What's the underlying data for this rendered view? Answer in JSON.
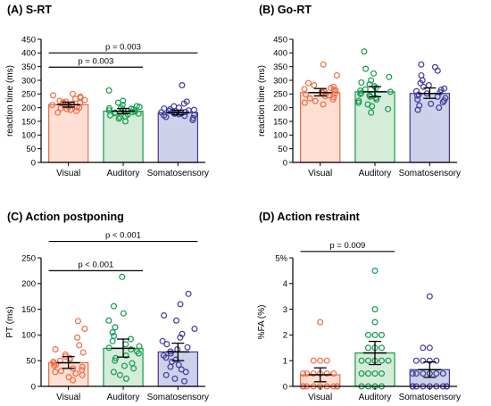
{
  "colors": {
    "Visual": {
      "fill": "#fde0d3",
      "stroke": "#ef6a45"
    },
    "Auditory": {
      "fill": "#d5ecd8",
      "stroke": "#129a4b"
    },
    "Somatosensory": {
      "fill": "#cdd1ea",
      "stroke": "#41399b"
    },
    "axis": "#000000"
  },
  "chart_data": [
    {
      "panel": "(A) S-RT",
      "type": "bar",
      "title": "(A) S-RT",
      "ylabel": "reaction time (ms)",
      "categories": [
        "Visual",
        "Auditory",
        "Somatosensory"
      ],
      "ylim": [
        0,
        450
      ],
      "yticks": [
        0,
        50,
        100,
        150,
        200,
        250,
        300,
        350,
        400,
        450
      ],
      "means": [
        211,
        187,
        182
      ],
      "ci": [
        [
          202,
          220
        ],
        [
          178,
          197
        ],
        [
          174,
          191
        ]
      ],
      "points": [
        [
          182,
          188,
          192,
          195,
          198,
          200,
          202,
          204,
          206,
          208,
          210,
          211,
          213,
          215,
          217,
          219,
          222,
          225,
          228,
          232,
          236,
          240,
          245,
          250
        ],
        [
          150,
          160,
          165,
          168,
          172,
          175,
          178,
          180,
          182,
          184,
          186,
          188,
          190,
          192,
          194,
          196,
          198,
          200,
          203,
          206,
          210,
          218,
          225,
          263
        ],
        [
          155,
          162,
          166,
          170,
          172,
          174,
          176,
          178,
          180,
          181,
          182,
          183,
          184,
          186,
          188,
          190,
          192,
          194,
          197,
          200,
          205,
          215,
          222,
          282
        ]
      ],
      "comparisons": [
        {
          "label": "p = 0.003",
          "from": 0,
          "to": 1,
          "y": 348
        },
        {
          "label": "p = 0.003",
          "from": 0,
          "to": 2,
          "y": 400
        }
      ]
    },
    {
      "panel": "(B) Go-RT",
      "type": "bar",
      "title": "(B) Go-RT",
      "ylabel": "reaction time (ms)",
      "categories": [
        "Visual",
        "Auditory",
        "Somatosensory"
      ],
      "ylim": [
        0,
        450
      ],
      "yticks": [
        0,
        50,
        100,
        150,
        200,
        250,
        300,
        350,
        400,
        450
      ],
      "means": [
        255,
        258,
        252
      ],
      "ci": [
        [
          243,
          270
        ],
        [
          240,
          277
        ],
        [
          234,
          272
        ]
      ],
      "points": [
        [
          212,
          218,
          224,
          230,
          234,
          238,
          242,
          245,
          248,
          250,
          252,
          254,
          256,
          258,
          260,
          262,
          265,
          268,
          272,
          276,
          282,
          290,
          318,
          358
        ],
        [
          182,
          195,
          205,
          212,
          218,
          225,
          230,
          236,
          240,
          245,
          250,
          254,
          258,
          262,
          267,
          272,
          278,
          285,
          292,
          300,
          312,
          325,
          342,
          405
        ],
        [
          192,
          200,
          208,
          214,
          220,
          226,
          230,
          235,
          240,
          244,
          248,
          252,
          256,
          260,
          265,
          270,
          276,
          282,
          290,
          300,
          318,
          335,
          348,
          358
        ]
      ],
      "comparisons": []
    },
    {
      "panel": "(C) Action postponing",
      "type": "bar",
      "title": "(C) Action postponing",
      "ylabel": "PT (ms)",
      "categories": [
        "Visual",
        "Auditory",
        "Somatosensory"
      ],
      "ylim": [
        0,
        250
      ],
      "yticks": [
        0,
        50,
        100,
        150,
        200,
        250
      ],
      "means": [
        46,
        74,
        67
      ],
      "ci": [
        [
          35,
          58
        ],
        [
          57,
          92
        ],
        [
          50,
          84
        ]
      ],
      "points": [
        [
          12,
          18,
          22,
          25,
          28,
          30,
          32,
          35,
          38,
          40,
          42,
          45,
          48,
          50,
          52,
          55,
          58,
          62,
          66,
          72,
          80,
          95,
          112,
          127
        ],
        [
          15,
          22,
          28,
          35,
          40,
          45,
          50,
          55,
          60,
          64,
          68,
          72,
          75,
          78,
          82,
          88,
          92,
          98,
          105,
          115,
          128,
          142,
          156,
          213
        ],
        [
          10,
          15,
          22,
          28,
          33,
          38,
          42,
          48,
          52,
          56,
          60,
          64,
          68,
          72,
          76,
          82,
          88,
          95,
          102,
          112,
          128,
          138,
          160,
          180
        ]
      ],
      "comparisons": [
        {
          "label": "p < 0.001",
          "from": 0,
          "to": 1,
          "y": 225
        },
        {
          "label": "p < 0.001",
          "from": 0,
          "to": 2,
          "y": 282
        }
      ]
    },
    {
      "panel": "(D) Action restraint",
      "type": "bar",
      "title": "(D) Action restraint",
      "ylabel": "%FA (%)",
      "categories": [
        "Visual",
        "Auditory",
        "Somatosensory"
      ],
      "ylim": [
        0,
        5
      ],
      "yticks": [
        0,
        1,
        2,
        3,
        4,
        5
      ],
      "yticklabels": [
        "0",
        "1",
        "2",
        "3",
        "4",
        "5%"
      ],
      "means": [
        0.45,
        1.3,
        0.65
      ],
      "ci": [
        [
          0.18,
          0.72
        ],
        [
          0.85,
          1.75
        ],
        [
          0.35,
          0.95
        ]
      ],
      "points": [
        [
          0,
          0,
          0,
          0,
          0,
          0,
          0,
          0,
          0,
          0,
          0,
          0,
          0,
          0.5,
          0.5,
          0.5,
          0.5,
          0.5,
          0.5,
          1,
          1,
          1,
          2.5
        ],
        [
          0,
          0,
          0,
          0,
          0.5,
          0.5,
          0.5,
          0.5,
          1,
          1,
          1,
          1,
          1,
          1.5,
          1.5,
          1.5,
          2,
          2,
          2,
          2.5,
          3,
          4.5
        ],
        [
          0,
          0,
          0,
          0,
          0,
          0,
          0,
          0,
          0,
          0.5,
          0.5,
          0.5,
          0.5,
          0.5,
          0.5,
          1,
          1,
          1,
          1,
          1.5,
          1.5,
          3.5
        ]
      ],
      "comparisons": [
        {
          "label": "p = 0.009",
          "from": 0,
          "to": 1,
          "y": 5.25
        }
      ]
    }
  ]
}
